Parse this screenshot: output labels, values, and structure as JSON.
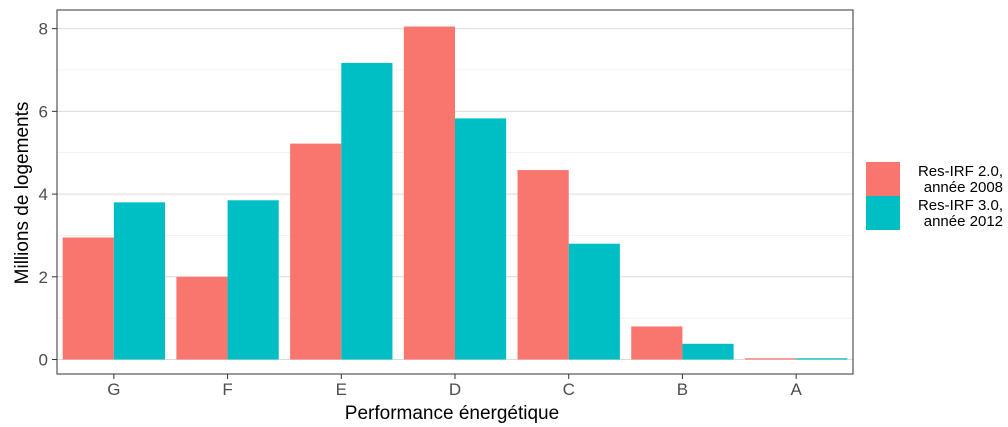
{
  "chart_data": {
    "type": "bar",
    "title": "",
    "xlabel": "Performance énergétique",
    "ylabel": "Millions de logements",
    "categories": [
      "G",
      "F",
      "E",
      "D",
      "C",
      "B",
      "A"
    ],
    "series": [
      {
        "name": "Res-IRF 2.0, année 2008",
        "legend_lines": [
          "Res-IRF 2.0,",
          "année 2008"
        ],
        "color": "#F8766D",
        "values": [
          2.95,
          2.0,
          5.22,
          8.05,
          4.58,
          0.8,
          0.03
        ]
      },
      {
        "name": "Res-IRF 3.0, année 2012",
        "legend_lines": [
          "Res-IRF 3.0,",
          "année 2012"
        ],
        "color": "#00BFC4",
        "values": [
          3.8,
          3.85,
          7.17,
          5.83,
          2.8,
          0.38,
          0.03
        ]
      }
    ],
    "yticks": [
      0,
      2,
      4,
      6,
      8
    ],
    "ylim": [
      -0.35,
      8.45
    ],
    "grid": true,
    "legend_position": "right"
  }
}
